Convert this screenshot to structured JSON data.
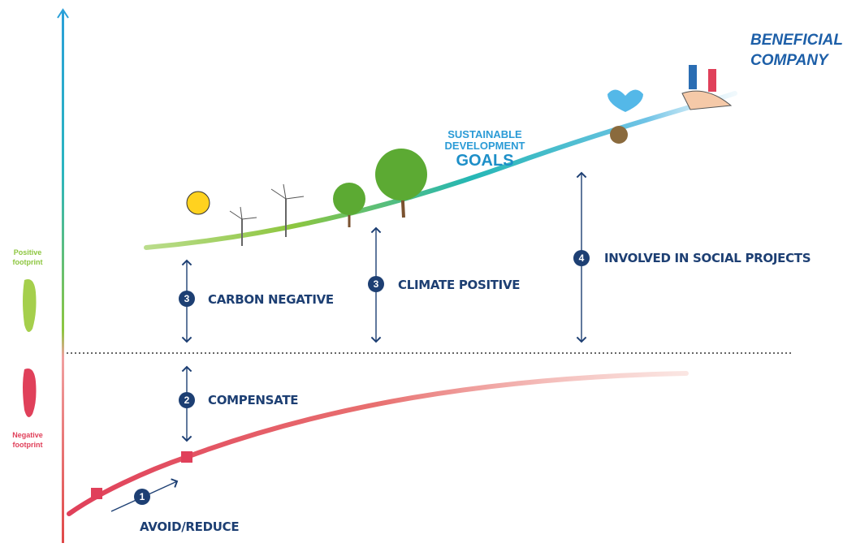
{
  "axis": {
    "positive_label": [
      "Positive",
      "footprint"
    ],
    "negative_label": [
      "Negative",
      "footprint"
    ]
  },
  "steps": [
    {
      "number": "1",
      "label": "AVOID/REDUCE"
    },
    {
      "number": "2",
      "label": "COMPENSATE"
    },
    {
      "number": "3",
      "label": "CARBON NEGATIVE"
    },
    {
      "number": "3",
      "label": "CLIMATE POSITIVE"
    },
    {
      "number": "4",
      "label": "INVOLVED IN SOCIAL PROJECTS"
    }
  ],
  "logo": {
    "lines": [
      "SUSTAINABLE",
      "DEVELOPMENT",
      "GOALS"
    ]
  },
  "goal": {
    "lines": [
      "BENEFICIAL",
      "COMPANY"
    ]
  }
}
